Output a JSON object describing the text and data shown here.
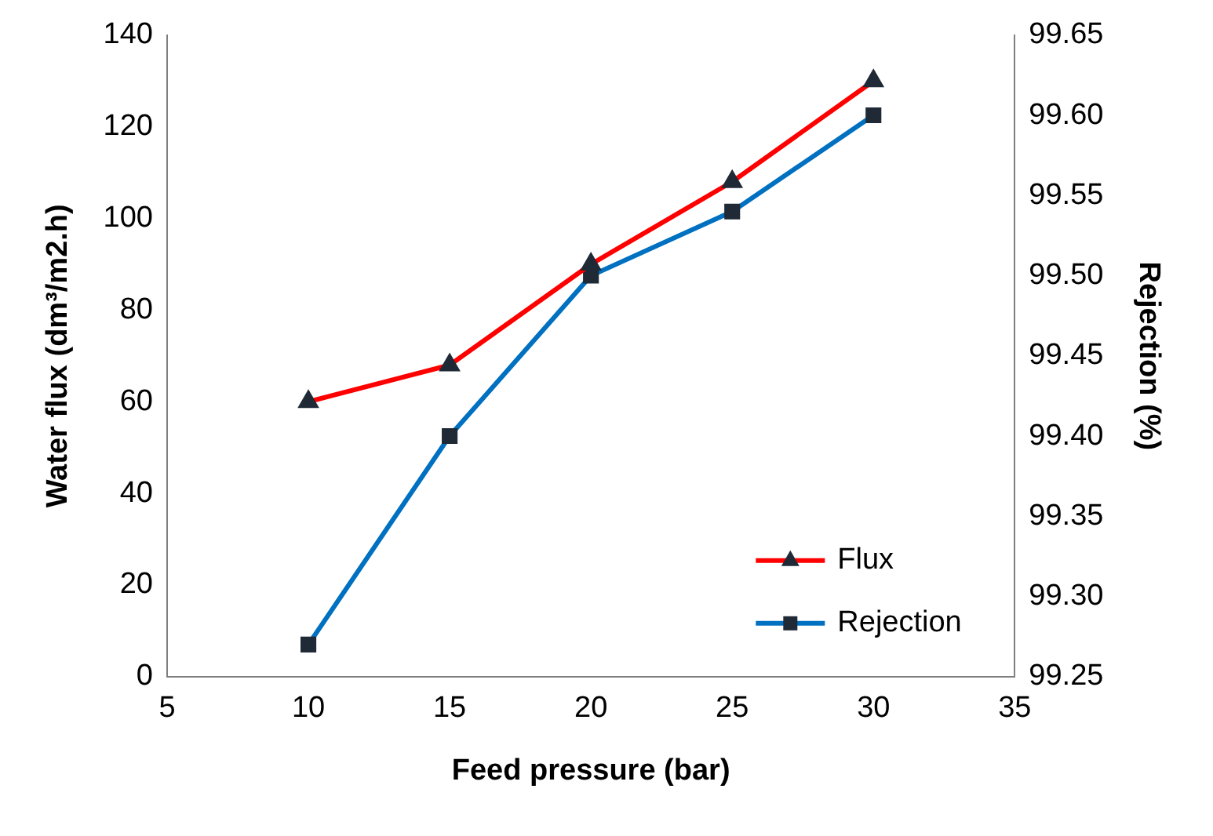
{
  "chart_data": {
    "type": "line",
    "xlabel": "Feed pressure (bar)",
    "ylabel": "Water flux (dm³/m2.h)",
    "y2label": "Rejection (%)",
    "x": [
      10,
      15,
      20,
      25,
      30
    ],
    "series": [
      {
        "name": "Flux",
        "color": "#ff0000",
        "values": [
          60,
          68,
          90,
          108,
          130
        ],
        "marker": "triangle"
      },
      {
        "name": "Rejection",
        "color": "#0070c0",
        "values": [
          99.27,
          99.4,
          99.5,
          99.54,
          99.6
        ],
        "axis": "y2",
        "marker": "square"
      }
    ],
    "xlim": [
      5,
      35
    ],
    "xticks": [
      5,
      10,
      15,
      20,
      25,
      30,
      35
    ],
    "ylim": [
      0,
      140
    ],
    "yticks": [
      0,
      20,
      40,
      60,
      80,
      100,
      120,
      140
    ],
    "y2lim": [
      99.25,
      99.65
    ],
    "y2ticks": [
      {
        "value": 99.25,
        "label": "99.25"
      },
      {
        "value": 99.3,
        "label": "99.30"
      },
      {
        "value": 99.35,
        "label": "99.35"
      },
      {
        "value": 99.4,
        "label": "99.40"
      },
      {
        "value": 99.45,
        "label": "99.45"
      },
      {
        "value": 99.5,
        "label": "99.50"
      },
      {
        "value": 99.55,
        "label": "99.55"
      },
      {
        "value": 99.6,
        "label": "99.60"
      },
      {
        "value": 99.65,
        "label": "99.65"
      }
    ],
    "grid": false,
    "legend": "bottom right",
    "line_style": "solid"
  }
}
